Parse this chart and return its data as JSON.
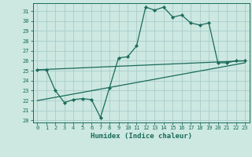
{
  "title": "",
  "xlabel": "Humidex (Indice chaleur)",
  "ylabel": "",
  "background_color": "#cce8e0",
  "grid_color": "#aacccc",
  "line_color": "#1a6b5a",
  "spine_color": "#1a6b5a",
  "xlim": [
    -0.5,
    23.5
  ],
  "ylim": [
    19.8,
    31.8
  ],
  "xticks": [
    0,
    1,
    2,
    3,
    4,
    5,
    6,
    7,
    8,
    9,
    10,
    11,
    12,
    13,
    14,
    15,
    16,
    17,
    18,
    19,
    20,
    21,
    22,
    23
  ],
  "yticks": [
    20,
    21,
    22,
    23,
    24,
    25,
    26,
    27,
    28,
    29,
    30,
    31
  ],
  "line1_x": [
    0,
    1,
    2,
    3,
    4,
    5,
    6,
    7,
    8,
    9,
    10,
    11,
    12,
    13,
    14,
    15,
    16,
    17,
    18,
    19,
    20,
    21,
    22,
    23
  ],
  "line1_y": [
    25.1,
    25.1,
    23.0,
    21.8,
    22.1,
    22.2,
    22.1,
    20.3,
    23.3,
    26.3,
    26.4,
    27.5,
    31.4,
    31.1,
    31.4,
    30.4,
    30.6,
    29.8,
    29.6,
    29.8,
    25.8,
    25.8,
    26.0,
    26.0
  ],
  "line2_x": [
    0,
    23
  ],
  "line2_y": [
    25.1,
    26.0
  ],
  "line3_x": [
    0,
    23
  ],
  "line3_y": [
    22.0,
    25.8
  ],
  "marker": "D",
  "markersize": 2.2,
  "linewidth": 0.9,
  "tick_fontsize": 5.0,
  "xlabel_fontsize": 6.5
}
